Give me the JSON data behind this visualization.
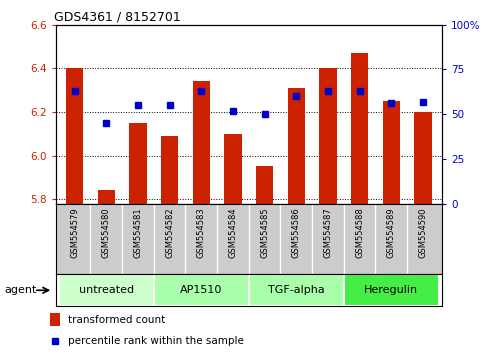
{
  "title": "GDS4361 / 8152701",
  "samples": [
    "GSM554579",
    "GSM554580",
    "GSM554581",
    "GSM554582",
    "GSM554583",
    "GSM554584",
    "GSM554585",
    "GSM554586",
    "GSM554587",
    "GSM554588",
    "GSM554589",
    "GSM554590"
  ],
  "bar_values": [
    6.4,
    5.84,
    6.15,
    6.09,
    6.34,
    6.1,
    5.95,
    6.31,
    6.4,
    6.47,
    6.25,
    6.2
  ],
  "dot_values": [
    63,
    45,
    55,
    55,
    63,
    52,
    50,
    60,
    63,
    63,
    56,
    57
  ],
  "ylim_left": [
    5.78,
    6.6
  ],
  "ylim_right": [
    0,
    100
  ],
  "yticks_left": [
    5.8,
    6.0,
    6.2,
    6.4,
    6.6
  ],
  "yticks_right": [
    0,
    25,
    50,
    75,
    100
  ],
  "bar_color": "#cc2200",
  "dot_color": "#0000cc",
  "bar_bottom": 5.78,
  "groups": [
    {
      "label": "untreated",
      "start": 0,
      "end": 3,
      "color": "#ccffcc"
    },
    {
      "label": "AP1510",
      "start": 3,
      "end": 6,
      "color": "#aaffaa"
    },
    {
      "label": "TGF-alpha",
      "start": 6,
      "end": 9,
      "color": "#aaffaa"
    },
    {
      "label": "Heregulin",
      "start": 9,
      "end": 12,
      "color": "#44ee44"
    }
  ],
  "xlabel_agent": "agent",
  "legend_bar": "transformed count",
  "legend_dot": "percentile rank within the sample",
  "tick_label_color_left": "#cc2200",
  "tick_label_color_right": "#0000cc",
  "sample_bg_color": "#cccccc",
  "sample_sep_color": "#aaaaaa"
}
